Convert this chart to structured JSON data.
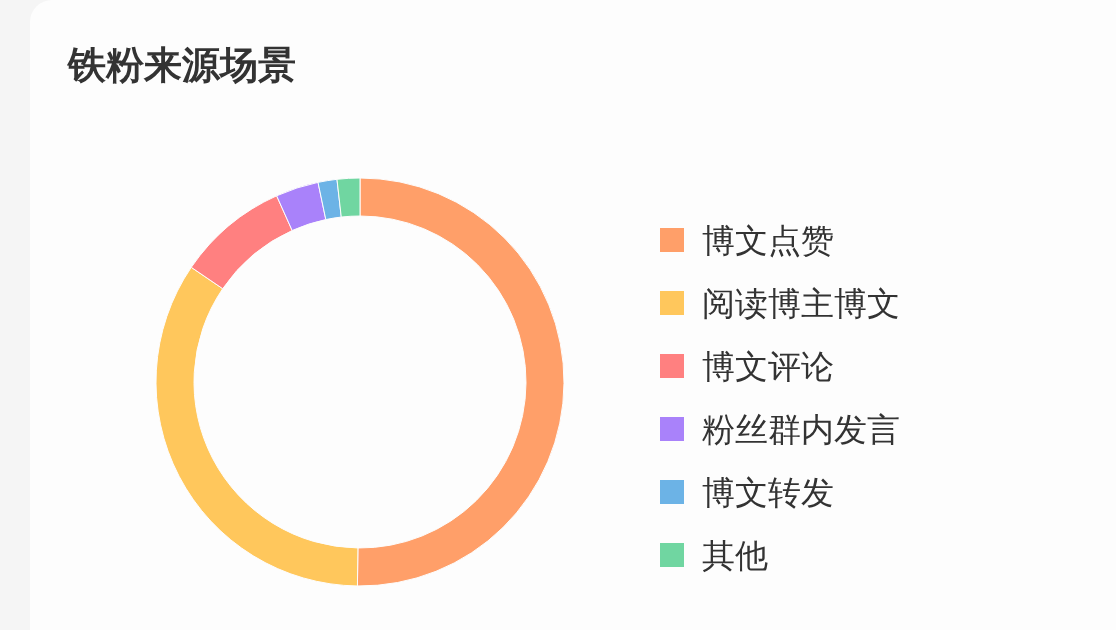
{
  "chart_data": {
    "type": "donut",
    "title": "铁粉来源场景",
    "categories": [
      "博文点赞",
      "阅读博主博文",
      "博文评论",
      "粉丝群内发言",
      "博文转发",
      "其他"
    ],
    "values": [
      50.2,
      34.3,
      8.8,
      3.4,
      1.5,
      1.8
    ],
    "colors": [
      "#ff9f69",
      "#ffc75c",
      "#ff8080",
      "#a982fa",
      "#6cb3e6",
      "#70d6a1"
    ],
    "legend": "right"
  }
}
